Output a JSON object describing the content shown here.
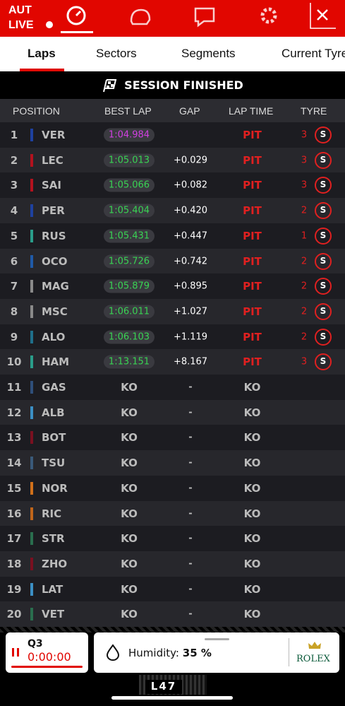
{
  "header": {
    "country": "AUT",
    "live": "LIVE"
  },
  "tabs": [
    "Laps",
    "Sectors",
    "Segments",
    "Current Tyres"
  ],
  "banner": "SESSION FINISHED",
  "columns": [
    "POSITION",
    "BEST LAP",
    "GAP",
    "LAP TIME",
    "TYRE"
  ],
  "rows": [
    {
      "pos": 1,
      "driver": "VER",
      "color": "#1e41a0",
      "best": "1:04.984",
      "lap": "PIT",
      "tyre_laps": 3,
      "compound": "S"
    },
    {
      "pos": 2,
      "driver": "LEC",
      "color": "#b3121e",
      "best": "1:05.013",
      "gap": "+0.029",
      "lap": "PIT",
      "tyre_laps": 3,
      "compound": "S"
    },
    {
      "pos": 3,
      "driver": "SAI",
      "color": "#b3121e",
      "best": "1:05.066",
      "gap": "+0.082",
      "lap": "PIT",
      "tyre_laps": 3,
      "compound": "S"
    },
    {
      "pos": 4,
      "driver": "PER",
      "color": "#1e41a0",
      "best": "1:05.404",
      "gap": "+0.420",
      "lap": "PIT",
      "tyre_laps": 2,
      "compound": "S"
    },
    {
      "pos": 5,
      "driver": "RUS",
      "color": "#2a9d8a",
      "best": "1:05.431",
      "gap": "+0.447",
      "lap": "PIT",
      "tyre_laps": 1,
      "compound": "S"
    },
    {
      "pos": 6,
      "driver": "OCO",
      "color": "#1f5aa8",
      "best": "1:05.726",
      "gap": "+0.742",
      "lap": "PIT",
      "tyre_laps": 2,
      "compound": "S"
    },
    {
      "pos": 7,
      "driver": "MAG",
      "color": "#8a8a8a",
      "best": "1:05.879",
      "gap": "+0.895",
      "lap": "PIT",
      "tyre_laps": 2,
      "compound": "S"
    },
    {
      "pos": 8,
      "driver": "MSC",
      "color": "#8a8a8a",
      "best": "1:06.011",
      "gap": "+1.027",
      "lap": "PIT",
      "tyre_laps": 2,
      "compound": "S"
    },
    {
      "pos": 9,
      "driver": "ALO",
      "color": "#1f6f8a",
      "best": "1:06.103",
      "gap": "+1.119",
      "lap": "PIT",
      "tyre_laps": 2,
      "compound": "S"
    },
    {
      "pos": 10,
      "driver": "HAM",
      "color": "#2a9d8a",
      "best": "1:13.151",
      "gap": "+8.167",
      "lap": "PIT",
      "tyre_laps": 3,
      "compound": "S"
    },
    {
      "pos": 11,
      "driver": "GAS",
      "color": "#2f4f7a",
      "best": "KO",
      "gap": "-",
      "lap": "KO"
    },
    {
      "pos": 12,
      "driver": "ALB",
      "color": "#3b8fc4",
      "best": "KO",
      "gap": "-",
      "lap": "KO"
    },
    {
      "pos": 13,
      "driver": "BOT",
      "color": "#7a1020",
      "best": "KO",
      "gap": "-",
      "lap": "KO"
    },
    {
      "pos": 14,
      "driver": "TSU",
      "color": "#3a5a7a",
      "best": "KO",
      "gap": "-",
      "lap": "KO"
    },
    {
      "pos": 15,
      "driver": "NOR",
      "color": "#d0701a",
      "best": "KO",
      "gap": "-",
      "lap": "KO"
    },
    {
      "pos": 16,
      "driver": "RIC",
      "color": "#c0651a",
      "best": "KO",
      "gap": "-",
      "lap": "KO"
    },
    {
      "pos": 17,
      "driver": "STR",
      "color": "#2a6e4e",
      "best": "KO",
      "gap": "-",
      "lap": "KO"
    },
    {
      "pos": 18,
      "driver": "ZHO",
      "color": "#7a1020",
      "best": "KO",
      "gap": "-",
      "lap": "KO"
    },
    {
      "pos": 19,
      "driver": "LAT",
      "color": "#3b8fc4",
      "best": "KO",
      "gap": "-",
      "lap": "KO"
    },
    {
      "pos": 20,
      "driver": "VET",
      "color": "#2a6e4e",
      "best": "KO",
      "gap": "-",
      "lap": "KO"
    }
  ],
  "footer": {
    "session": "Q3",
    "timer": "0:00:00",
    "humidity_label": "Humidity:",
    "humidity_value": "35 %",
    "brand": "ROLEX",
    "car": "L47"
  }
}
